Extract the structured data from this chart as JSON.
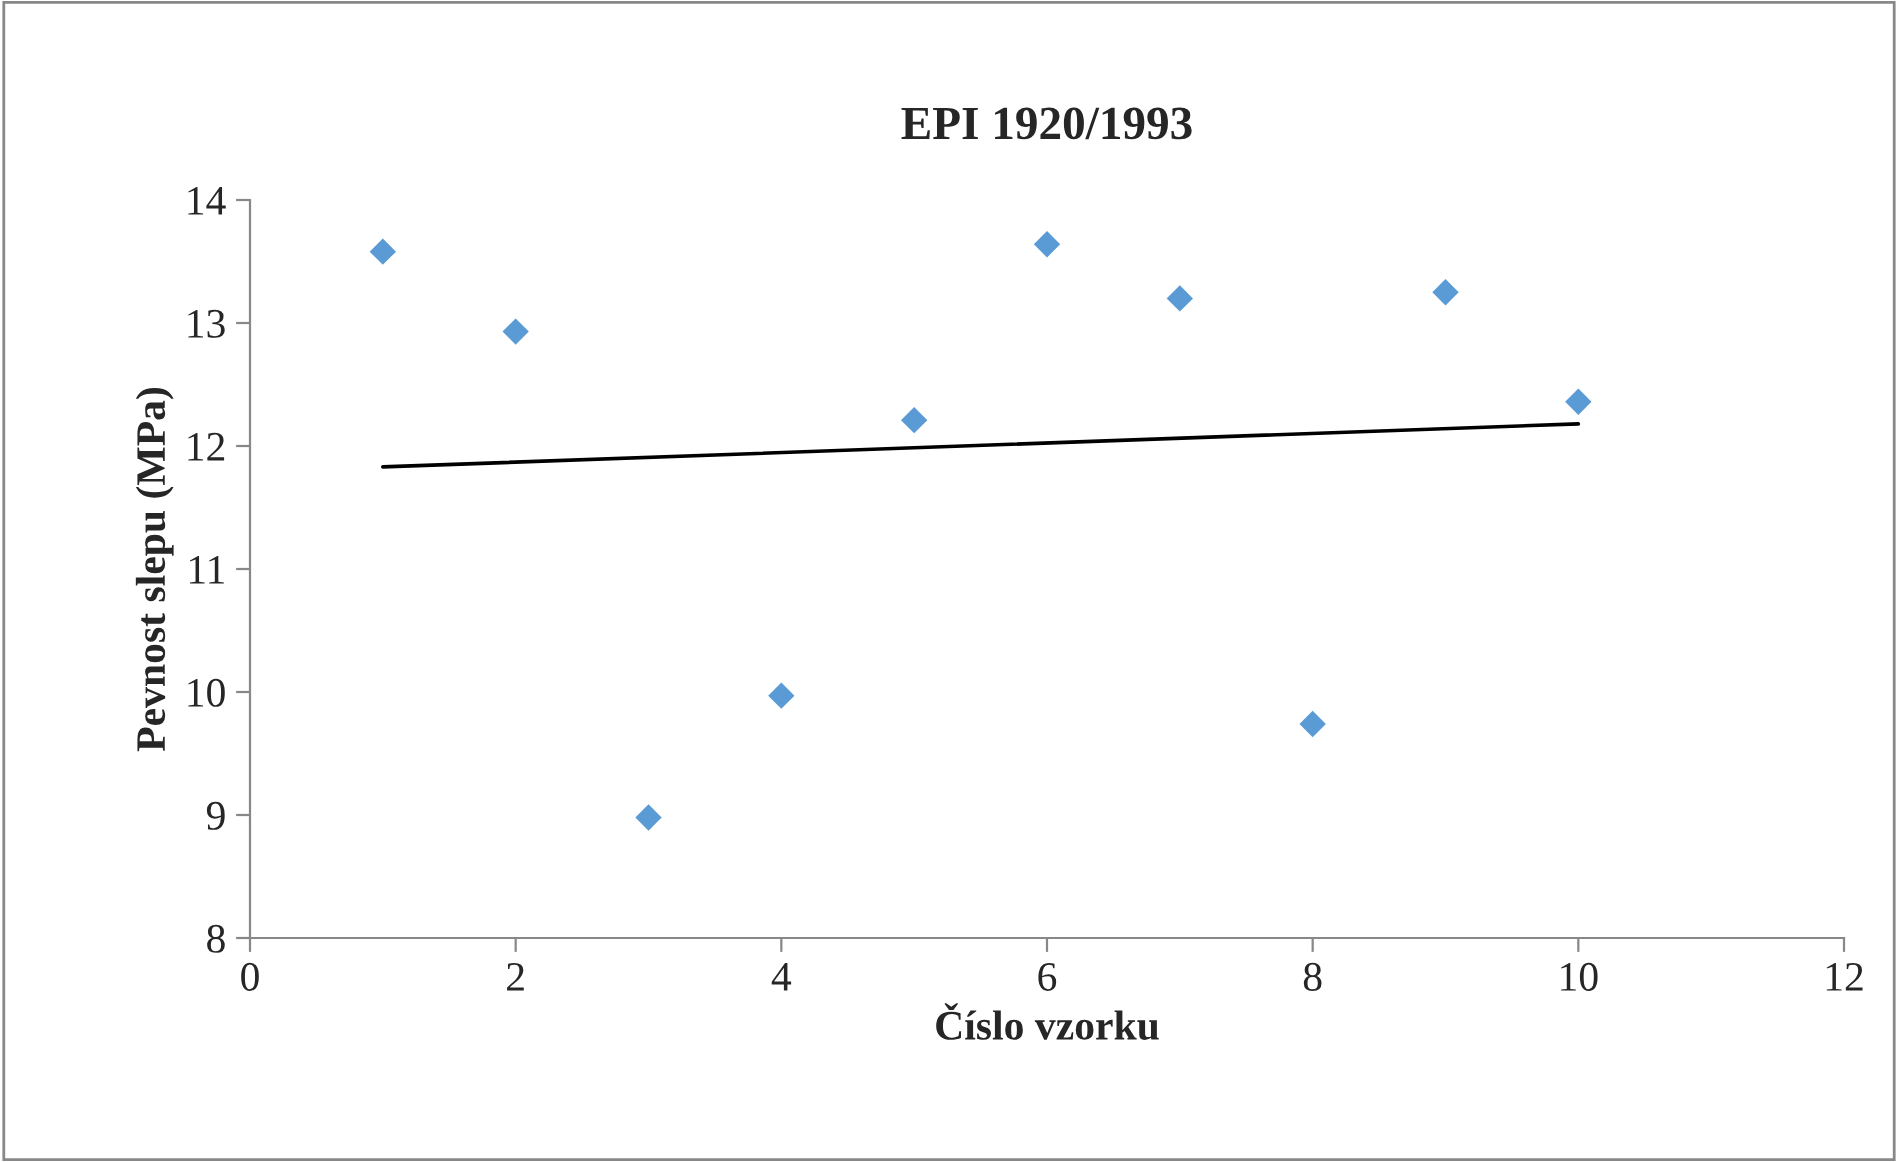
{
  "chart_data": {
    "type": "scatter",
    "title": "EPI 1920/1993",
    "xlabel": "Číslo vzorku",
    "ylabel": "Pevnost slepu (MPa)",
    "xlim": [
      0,
      12
    ],
    "xticks": [
      0,
      2,
      4,
      6,
      8,
      10,
      12
    ],
    "ylim": [
      8,
      14
    ],
    "yticks": [
      8,
      9,
      10,
      11,
      12,
      13,
      14
    ],
    "grid": false,
    "legend": false,
    "marker": "diamond",
    "series": [
      {
        "color": "#5b9bd5",
        "x": [
          1,
          2,
          3,
          4,
          5,
          6,
          7,
          8,
          9,
          10
        ],
        "values": [
          13.58,
          12.93,
          8.98,
          9.97,
          12.21,
          13.64,
          13.2,
          9.74,
          13.25,
          12.36
        ]
      },
      {
        "type": "line",
        "color": "#000000",
        "marker": "none",
        "x": [
          1,
          10
        ],
        "values": [
          11.83,
          12.18
        ]
      }
    ]
  }
}
